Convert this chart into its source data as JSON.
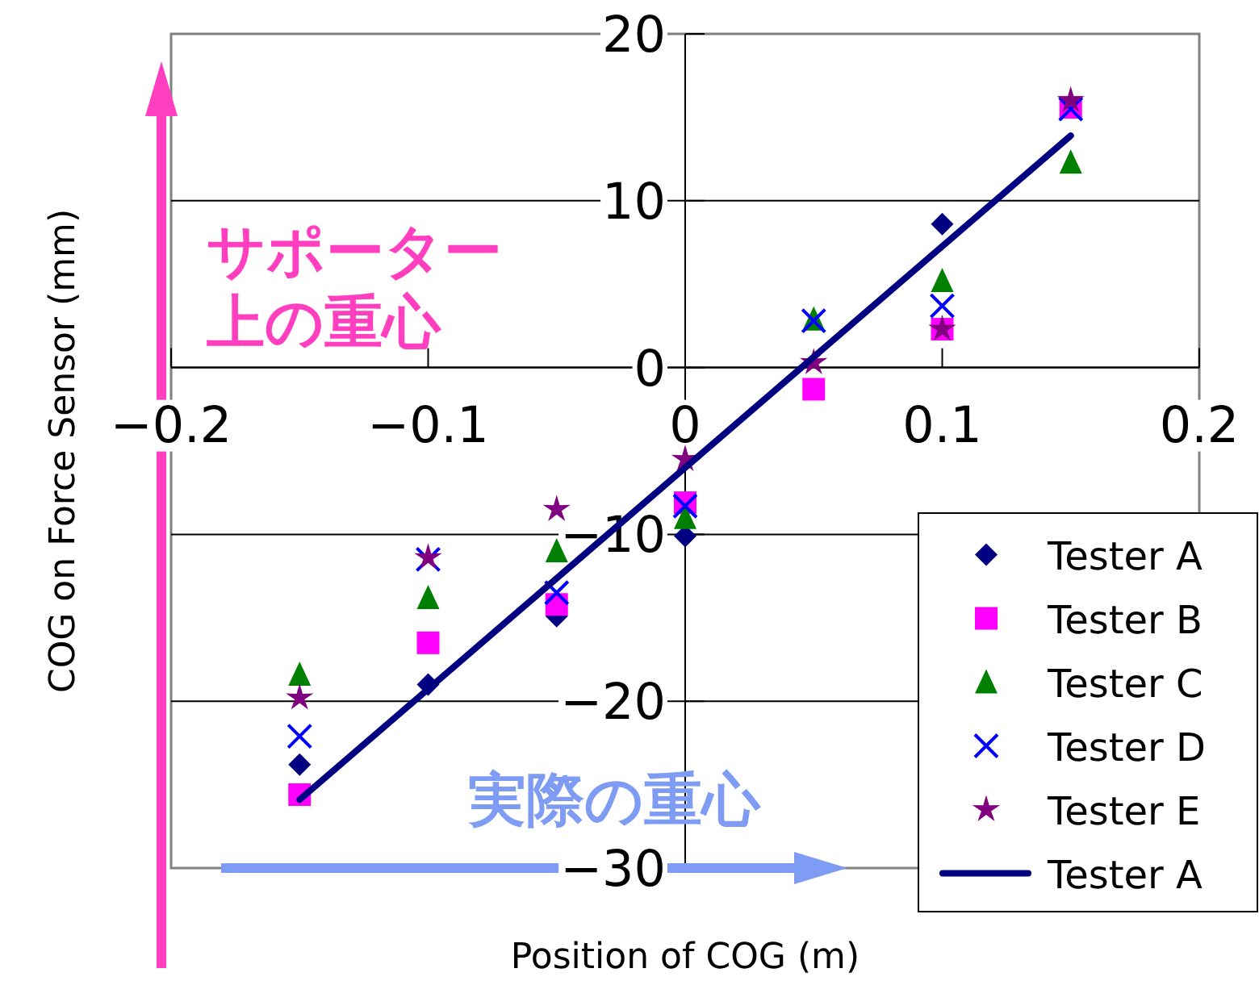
{
  "chart_data": {
    "type": "scatter",
    "xlabel": "Position of COG (m)",
    "ylabel": "COG on Force Sensor (mm)",
    "x": [
      -0.15,
      -0.1,
      -0.05,
      0,
      0.05,
      0.1,
      0.15
    ],
    "series": [
      {
        "name": "Tester A",
        "color": "#000080",
        "marker": "diamond",
        "values": [
          -23.8,
          -19.0,
          -14.9,
          -10.1,
          null,
          8.6,
          null
        ]
      },
      {
        "name": "Tester B",
        "color": "#ff00ff",
        "marker": "square",
        "values": [
          -25.6,
          -16.5,
          -14.2,
          -8.1,
          -1.3,
          2.3,
          15.6
        ]
      },
      {
        "name": "Tester C",
        "color": "#008000",
        "marker": "triangle",
        "values": [
          -18.4,
          -13.8,
          -11.0,
          -9.0,
          2.9,
          5.2,
          12.3
        ]
      },
      {
        "name": "Tester D",
        "color": "#0000ff",
        "marker": "cross",
        "values": [
          -22.1,
          -11.5,
          -13.5,
          -8.3,
          2.8,
          3.7,
          15.5
        ]
      },
      {
        "name": "Tester E",
        "color": "#800080",
        "marker": "star",
        "values": [
          -19.8,
          -11.4,
          -8.5,
          -5.5,
          0.3,
          2.3,
          16.0
        ]
      },
      {
        "name": "Tester A",
        "type": "line",
        "color": "#000080",
        "marker": "none",
        "x": [
          -0.15,
          0.15
        ],
        "values": [
          -25.9,
          13.9
        ]
      }
    ],
    "xlim": [
      -0.2,
      0.2
    ],
    "xticks": [
      -0.2,
      -0.1,
      0,
      0.1,
      0.2
    ],
    "ylim": [
      -30,
      20
    ],
    "yticks": [
      -30,
      -20,
      -10,
      0,
      10,
      20
    ],
    "grid": "y",
    "legend": "bottom right",
    "annotations": [
      "サポーター",
      "上の重心",
      "実際の重心"
    ]
  }
}
